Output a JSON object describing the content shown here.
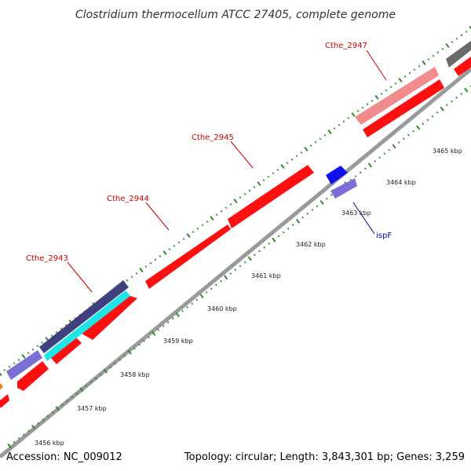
{
  "title": "Clostridium thermocellum ATCC 27405, complete genome",
  "footer": {
    "accession": "Accession: NC_009012",
    "summary": "Topology: circular; Length: 3,843,301 bp; Genes: 3,259"
  },
  "colors": {
    "backbone": "#9a9a9a",
    "ticks": "#2e8b2e",
    "red_gene": "#ff1010",
    "pink_gene": "#f08c8c",
    "navy_gene": "#40407f",
    "cyan_gene": "#1fe6e6",
    "periwinkle_gene": "#7b6fd6",
    "blue_gene": "#1010ee",
    "gray_gene": "#6a6a6a",
    "red_label": "#cc0000",
    "blue_label": "#000099"
  },
  "kbp_labels": [
    "3456 kbp",
    "3457 kbp",
    "3458 kbp",
    "3459 kbp",
    "3460 kbp",
    "3461 kbp",
    "3462 kbp",
    "3463 kbp",
    "3464 kbp",
    "3465 kbp"
  ],
  "gene_labels": [
    {
      "name": "Cthe_2943",
      "color": "red"
    },
    {
      "name": "Cthe_2944",
      "color": "red"
    },
    {
      "name": "Cthe_2945",
      "color": "red"
    },
    {
      "name": "Cthe_2947",
      "color": "red"
    },
    {
      "name": "ispF",
      "color": "blue"
    }
  ]
}
